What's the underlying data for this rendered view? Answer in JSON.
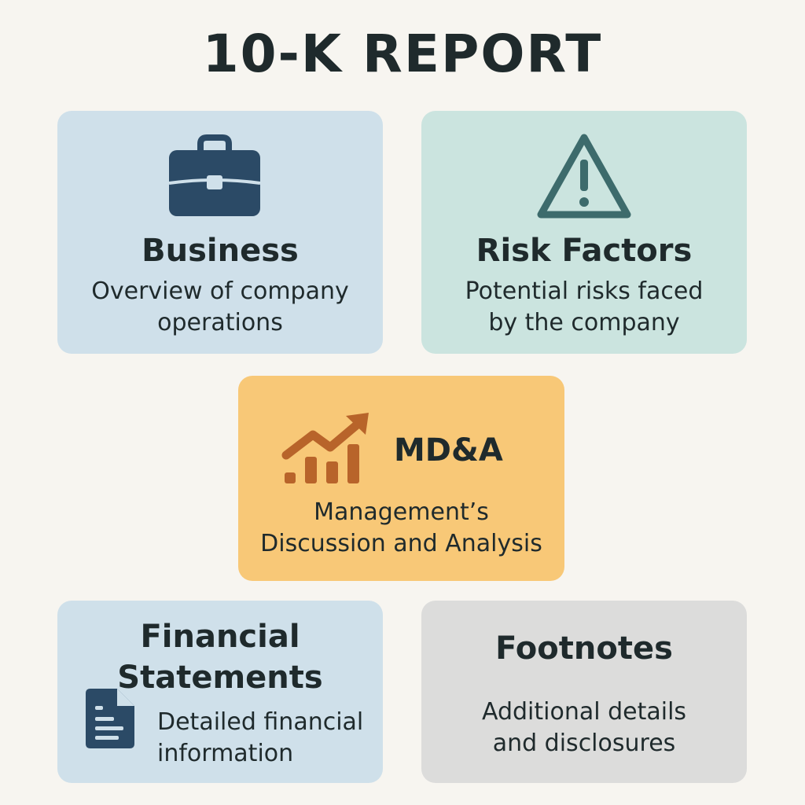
{
  "title": "10-K REPORT",
  "colors": {
    "background": "#f7f5f0",
    "blue_card": "#cfe0ea",
    "teal_card": "#cbe4df",
    "orange_card": "#f8c877",
    "gray_card": "#dcdcdb",
    "navy_icon": "#2b4a66",
    "teal_icon": "#3d6b6c",
    "orange_icon": "#b8642a"
  },
  "sections": {
    "business": {
      "icon": "briefcase-icon",
      "heading": "Business",
      "desc_line1": "Overview of company",
      "desc_line2": "operations"
    },
    "risk": {
      "icon": "warning-icon",
      "heading": "Risk Factors",
      "desc_line1": "Potential risks faced",
      "desc_line2": "by the company"
    },
    "mda": {
      "icon": "growth-chart-icon",
      "heading": "MD&A",
      "desc_line1": "Management’s",
      "desc_line2": "Discussion and Analysis"
    },
    "financial": {
      "icon": "document-icon",
      "heading_line1": "Financial",
      "heading_line2": "Statements",
      "desc_line1": "Detailed financial",
      "desc_line2": "information"
    },
    "footnotes": {
      "heading": "Footnotes",
      "desc_line1": "Additional details",
      "desc_line2": "and disclosures"
    }
  }
}
